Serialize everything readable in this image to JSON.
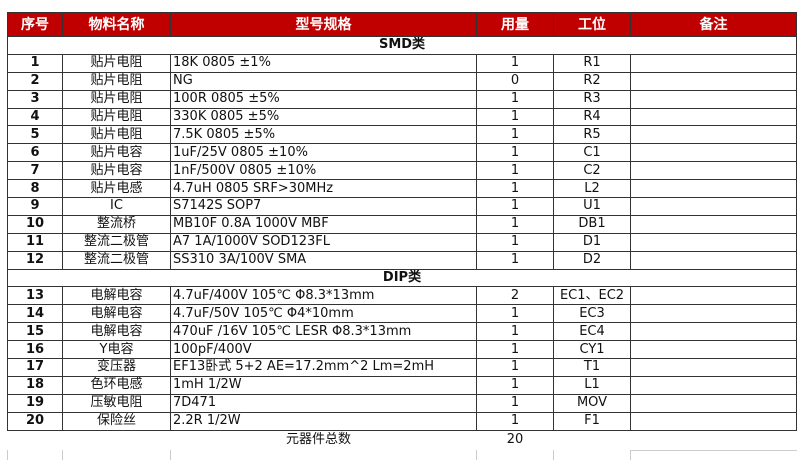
{
  "header": [
    "序号",
    "物料名称",
    "型号规格",
    "用量",
    "工位",
    "备注"
  ],
  "header_color": "#c00000",
  "sections": [
    {
      "title": "SMD类",
      "rows": [
        [
          "1",
          "贴片电阻",
          "18K 0805 ±1%",
          "1",
          "R1",
          ""
        ],
        [
          "2",
          "贴片电阻",
          "NG",
          "0",
          "R2",
          ""
        ],
        [
          "3",
          "贴片电阻",
          "100R 0805 ±5%",
          "1",
          "R3",
          ""
        ],
        [
          "4",
          "贴片电阻",
          "330K 0805 ±5%",
          "1",
          "R4",
          ""
        ],
        [
          "5",
          "贴片电阻",
          "7.5K 0805 ±5%",
          "1",
          "R5",
          ""
        ],
        [
          "6",
          "贴片电容",
          "1uF/25V 0805 ±10%",
          "1",
          "C1",
          ""
        ],
        [
          "7",
          "贴片电容",
          "1nF/500V 0805 ±10%",
          "1",
          "C2",
          ""
        ],
        [
          "8",
          "贴片电感",
          "4.7uH 0805 SRF>30MHz",
          "1",
          "L2",
          ""
        ],
        [
          "9",
          "IC",
          "S7142S SOP7",
          "1",
          "U1",
          ""
        ],
        [
          "10",
          "整流桥",
          "MB10F 0.8A 1000V MBF",
          "1",
          "DB1",
          ""
        ],
        [
          "11",
          "整流二极管",
          "A7 1A/1000V SOD123FL",
          "1",
          "D1",
          ""
        ],
        [
          "12",
          "整流二极管",
          "SS310 3A/100V SMA",
          "1",
          "D2",
          ""
        ]
      ]
    },
    {
      "title": "DIP类",
      "rows": [
        [
          "13",
          "电解电容",
          "4.7uF/400V 105℃ Φ8.3*13mm",
          "2",
          "EC1、EC2",
          ""
        ],
        [
          "14",
          "电解电容",
          "4.7uF/50V 105℃ Φ4*10mm",
          "1",
          "EC3",
          ""
        ],
        [
          "15",
          "电解电容",
          "470uF /16V 105℃ LESR Φ8.3*13mm",
          "1",
          "EC4",
          ""
        ],
        [
          "16",
          "Y电容",
          "100pF/400V",
          "1",
          "CY1",
          ""
        ],
        [
          "17",
          "变压器",
          "EF13卧式 5+2 AE=17.2mm^2 Lm=2mH",
          "1",
          "T1",
          ""
        ],
        [
          "18",
          "色环电感",
          "1mH 1/2W",
          "1",
          "L1",
          ""
        ],
        [
          "19",
          "压敏电阻",
          "7D471",
          "1",
          "MOV",
          ""
        ],
        [
          "20",
          "保险丝",
          "2.2R 1/2W",
          "1",
          "F1",
          ""
        ]
      ]
    }
  ],
  "total": {
    "label": "元器件总数",
    "value": "20"
  }
}
